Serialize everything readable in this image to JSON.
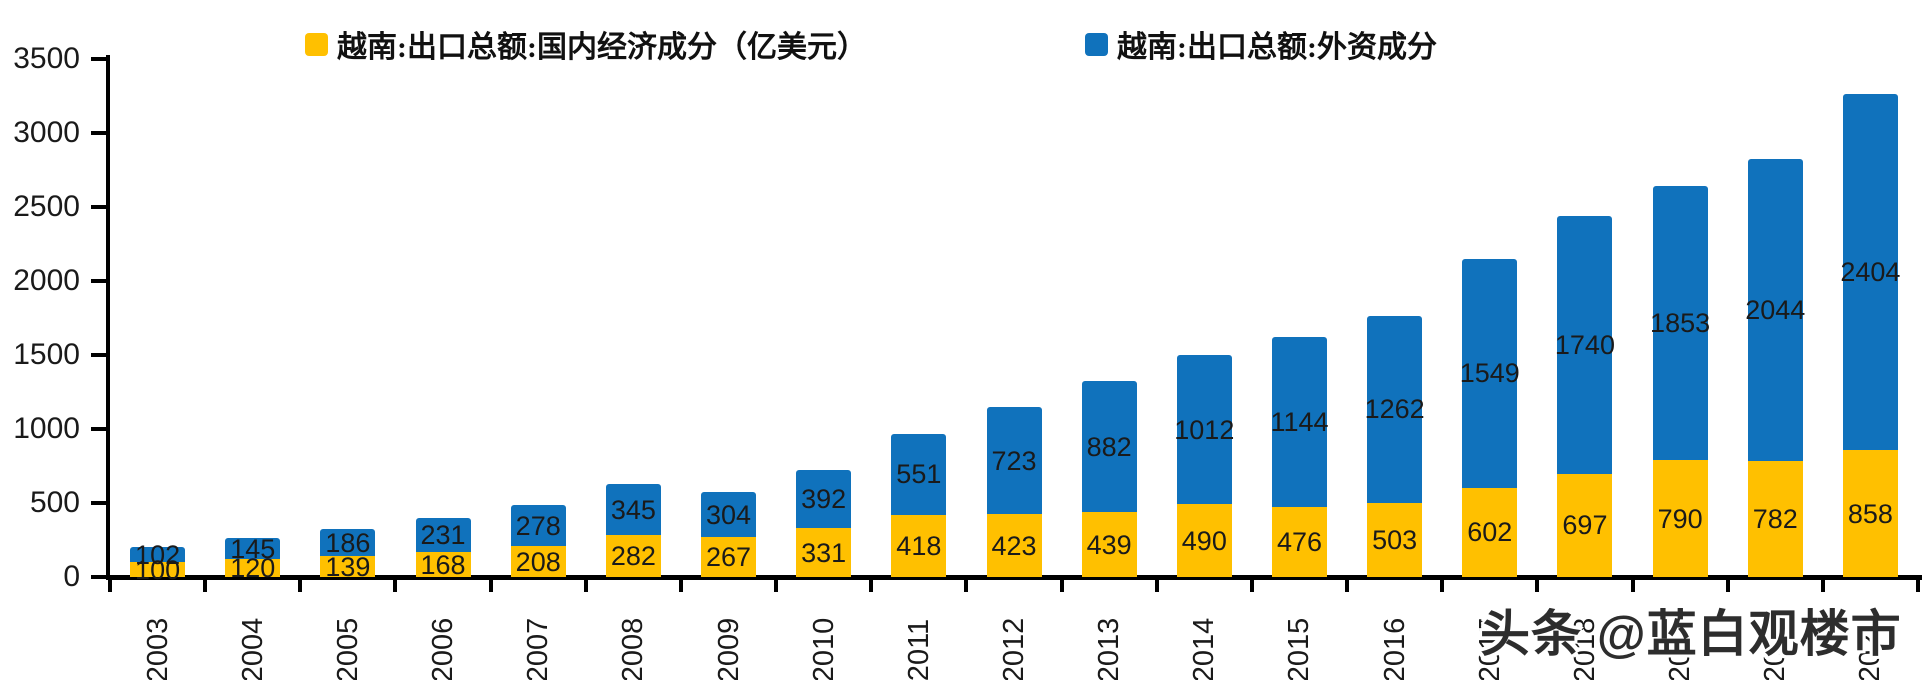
{
  "chart_data": {
    "type": "bar",
    "stacked": true,
    "title": "",
    "xlabel": "",
    "ylabel": "",
    "unit": "亿美元",
    "categories": [
      "2003",
      "2004",
      "2005",
      "2006",
      "2007",
      "2008",
      "2009",
      "2010",
      "2011",
      "2012",
      "2013",
      "2014",
      "2015",
      "2016",
      "2017",
      "2018",
      "2019",
      "2020",
      "2021"
    ],
    "series": [
      {
        "name": "越南:出口总额:国内经济成分（亿美元）",
        "color": "#FFC000",
        "values": [
          100,
          120,
          139,
          168,
          208,
          282,
          267,
          331,
          418,
          423,
          439,
          490,
          476,
          503,
          602,
          697,
          790,
          782,
          858
        ]
      },
      {
        "name": "越南:出口总额:外资成分",
        "color": "#1072BC",
        "values": [
          102,
          145,
          186,
          231,
          278,
          345,
          304,
          392,
          551,
          723,
          882,
          1012,
          1144,
          1262,
          1549,
          1740,
          1853,
          2044,
          2404
        ]
      }
    ],
    "ylim": [
      0,
      3500
    ],
    "y_ticks": [
      0,
      500,
      1000,
      1500,
      2000,
      2500,
      3000,
      3500
    ],
    "grid": false,
    "legend_position": "top",
    "data_labels": true
  },
  "legend": {
    "items": [
      {
        "label": "越南:出口总额:国内经济成分（亿美元）"
      },
      {
        "label": "越南:出口总额:外资成分"
      }
    ]
  },
  "watermark": {
    "text": "头条 @蓝白观楼市"
  },
  "colors": {
    "domestic_bar": "#FFC000",
    "foreign_bar": "#1072BC",
    "axis": "#000000",
    "data_label": "#1a1a1a"
  }
}
